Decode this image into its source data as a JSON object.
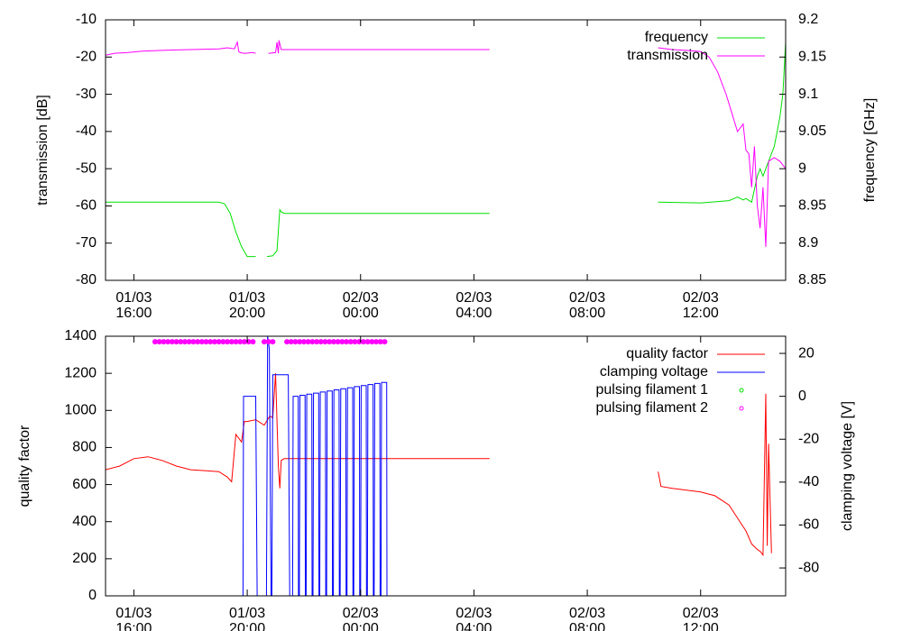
{
  "chart_data": [
    {
      "type": "line",
      "ylabel": "transmission [dB]",
      "y2label": "frequency [GHz]",
      "legend": "top right",
      "xlim": [
        15,
        39
      ],
      "xticks": [
        {
          "value": 16,
          "label": "01/03\n16:00"
        },
        {
          "value": 20,
          "label": "01/03\n20:00"
        },
        {
          "value": 24,
          "label": "02/03\n00:00"
        },
        {
          "value": 28,
          "label": "02/03\n04:00"
        },
        {
          "value": 32,
          "label": "02/03\n08:00"
        },
        {
          "value": 36,
          "label": "02/03\n12:00"
        }
      ],
      "ylim": [
        -80,
        -10
      ],
      "yticks": [
        -10,
        -20,
        -30,
        -40,
        -50,
        -60,
        -70,
        -80
      ],
      "y2lim": [
        8.85,
        9.2
      ],
      "y2ticks": [
        9.2,
        9.15,
        9.1,
        9.05,
        9,
        8.95,
        8.9,
        8.85
      ],
      "series": [
        {
          "name": "frequency",
          "color": "#00e000",
          "axis": "y2",
          "style": "line",
          "x": [
            15,
            17,
            19,
            19.2,
            19.4,
            19.6,
            19.8,
            20,
            20.3,
            20.4,
            20.7,
            20.9,
            21.05,
            21.15,
            21.2,
            21.3,
            22,
            25,
            28.55,
            30,
            34.5,
            36,
            37,
            37.3,
            37.5,
            37.6,
            37.8,
            38,
            38.1,
            38.2,
            38.3,
            38.5,
            38.6,
            38.7,
            38.8,
            38.9,
            39
          ],
          "values": [
            8.955,
            8.955,
            8.955,
            8.953,
            8.94,
            8.915,
            8.895,
            8.882,
            8.882,
            null,
            8.882,
            8.883,
            8.89,
            8.945,
            8.942,
            8.94,
            8.94,
            8.94,
            8.94,
            null,
            8.955,
            8.954,
            8.957,
            8.962,
            8.958,
            8.96,
            8.955,
            8.99,
            9.0,
            8.99,
            9.0,
            9.02,
            9.03,
            9.05,
            9.07,
            9.1,
            9.17
          ]
        },
        {
          "name": "transmission",
          "color": "#ff00ff",
          "axis": "y",
          "style": "line",
          "x": [
            15,
            15.3,
            15.8,
            16.3,
            17,
            17.5,
            18,
            18.5,
            19,
            19.3,
            19.55,
            19.65,
            19.7,
            19.75,
            19.9,
            20.2,
            20.3,
            20.4,
            20.75,
            21,
            21.05,
            21.1,
            21.12,
            21.2,
            21.4,
            22,
            24,
            26,
            28.55,
            30,
            34.5,
            35,
            35.5,
            36,
            36.3,
            36.6,
            36.9,
            37.1,
            37.3,
            37.5,
            37.6,
            37.7,
            37.8,
            37.9,
            38,
            38.1,
            38.2,
            38.3,
            38.4,
            38.6,
            38.8,
            39
          ],
          "values": [
            -19.5,
            -19,
            -18.8,
            -18.4,
            -18.2,
            -18.1,
            -18,
            -17.9,
            -17.8,
            -17.5,
            -17.8,
            -16,
            -18.5,
            -18.8,
            -19,
            -18.8,
            -19,
            null,
            -19,
            -18.8,
            -16,
            -19,
            -15.5,
            -18,
            -18,
            -18,
            -18,
            -18,
            -18,
            null,
            -17.5,
            -18,
            -18.2,
            -18.5,
            -20,
            -24,
            -30,
            -35,
            -40,
            -38,
            -45,
            -46,
            -55,
            -44,
            -60,
            -66,
            -55,
            -71,
            -48,
            -47,
            -48,
            -50
          ]
        }
      ]
    },
    {
      "type": "line",
      "ylabel": "quality factor",
      "y2label": "clamping voltage [V]",
      "legend": "top right",
      "xlim": [
        15,
        39
      ],
      "xticks": [
        {
          "value": 16,
          "label": "01/03\n16:00"
        },
        {
          "value": 20,
          "label": "01/03\n20:00"
        },
        {
          "value": 24,
          "label": "02/03\n00:00"
        },
        {
          "value": 28,
          "label": "02/03\n04:00"
        },
        {
          "value": 32,
          "label": "02/03\n08:00"
        },
        {
          "value": 36,
          "label": "02/03\n12:00"
        }
      ],
      "ylim": [
        0,
        1400
      ],
      "yticks": [
        1400,
        1200,
        1000,
        800,
        600,
        400,
        200,
        0
      ],
      "y2lim": [
        -93,
        28
      ],
      "y2ticks": [
        20,
        0,
        -20,
        -40,
        -60,
        -80
      ],
      "series": [
        {
          "name": "quality factor",
          "color": "#ff0000",
          "axis": "y",
          "style": "line",
          "x": [
            15,
            15.5,
            16,
            16.5,
            17,
            17.5,
            18,
            18.5,
            19,
            19.3,
            19.45,
            19.6,
            19.8,
            19.9,
            20,
            20.3,
            20.6,
            20.8,
            20.9,
            21,
            21.1,
            21.15,
            21.2,
            21.3,
            21.4,
            21.6,
            22,
            25,
            28.55,
            30,
            34.5,
            34.6,
            35,
            36,
            36.5,
            37,
            37.3,
            37.6,
            37.8,
            38,
            38.1,
            38.2,
            38.3,
            38.35,
            38.4,
            38.5
          ],
          "values": [
            680,
            700,
            740,
            750,
            730,
            700,
            680,
            675,
            670,
            640,
            615,
            870,
            830,
            940,
            940,
            950,
            920,
            970,
            960,
            1200,
            700,
            580,
            730,
            740,
            740,
            740,
            740,
            740,
            740,
            null,
            670,
            590,
            580,
            560,
            540,
            490,
            420,
            350,
            280,
            250,
            240,
            220,
            1090,
            270,
            820,
            230
          ]
        },
        {
          "name": "clamping voltage",
          "color": "#0000ff",
          "axis": "y2",
          "style": "line",
          "x": [
            19.85,
            19.87,
            20.3,
            20.35,
            20.68,
            20.72,
            20.78,
            20.84,
            20.87,
            20.9,
            21.45,
            21.5,
            21.6,
            21.62,
            21.8,
            21.81,
            21.84,
            21.86,
            22.04,
            22.05,
            22.08,
            22.1,
            22.28,
            22.29,
            22.32,
            22.34,
            22.52,
            22.53,
            22.56,
            22.58,
            22.76,
            22.77,
            22.8,
            22.82,
            23.0,
            23.01,
            23.04,
            23.06,
            23.24,
            23.25,
            23.28,
            23.3,
            23.48,
            23.49,
            23.52,
            23.54,
            23.72,
            23.73,
            23.76,
            23.78,
            23.96,
            23.97,
            24.0,
            24.02,
            24.2,
            24.21,
            24.24,
            24.26,
            24.44,
            24.45,
            24.48,
            24.5,
            24.68,
            24.69,
            24.72,
            24.74,
            24.92,
            24.93
          ],
          "values": [
            -93,
            0,
            0,
            -93,
            -93,
            28,
            22,
            -93,
            -93,
            10,
            10,
            -93,
            -93,
            0,
            0,
            -93,
            -93,
            0.5,
            0.5,
            -93,
            -93,
            1,
            1,
            -93,
            -93,
            1.5,
            1.5,
            -93,
            -93,
            2,
            2,
            -93,
            -93,
            2.5,
            2.5,
            -93,
            -93,
            3,
            3,
            -93,
            -93,
            3.5,
            3.5,
            -93,
            -93,
            4,
            4,
            -93,
            -93,
            4.5,
            4.5,
            -93,
            -93,
            5,
            5,
            -93,
            -93,
            5.5,
            5.5,
            -93,
            -93,
            6,
            6,
            -93,
            -93,
            6.5,
            6.5,
            -93
          ]
        },
        {
          "name": "pulsing filament 1",
          "color": "#00e000",
          "axis": "y",
          "style": "points",
          "x": [],
          "values": []
        },
        {
          "name": "pulsing filament 2",
          "color": "#ff00ff",
          "axis": "y",
          "style": "points",
          "x": [
            16.75,
            16.9,
            17.05,
            17.2,
            17.35,
            17.5,
            17.65,
            17.8,
            17.95,
            18.1,
            18.25,
            18.4,
            18.55,
            18.7,
            18.85,
            19,
            19.15,
            19.3,
            19.45,
            19.6,
            19.75,
            19.9,
            20.05,
            20.2,
            20.6,
            20.75,
            20.9,
            21.4,
            21.55,
            21.7,
            21.85,
            22,
            22.15,
            22.3,
            22.45,
            22.6,
            22.75,
            22.9,
            23.05,
            23.2,
            23.35,
            23.5,
            23.65,
            23.8,
            23.95,
            24.1,
            24.25,
            24.4,
            24.55,
            24.7,
            24.85
          ],
          "values": [
            1370,
            1370,
            1370,
            1370,
            1370,
            1370,
            1370,
            1370,
            1370,
            1370,
            1370,
            1370,
            1370,
            1370,
            1370,
            1370,
            1370,
            1370,
            1370,
            1370,
            1370,
            1370,
            1370,
            1370,
            1370,
            1370,
            1370,
            1370,
            1370,
            1370,
            1370,
            1370,
            1370,
            1370,
            1370,
            1370,
            1370,
            1370,
            1370,
            1370,
            1370,
            1370,
            1370,
            1370,
            1370,
            1370,
            1370,
            1370,
            1370,
            1370,
            1370
          ]
        }
      ]
    }
  ]
}
